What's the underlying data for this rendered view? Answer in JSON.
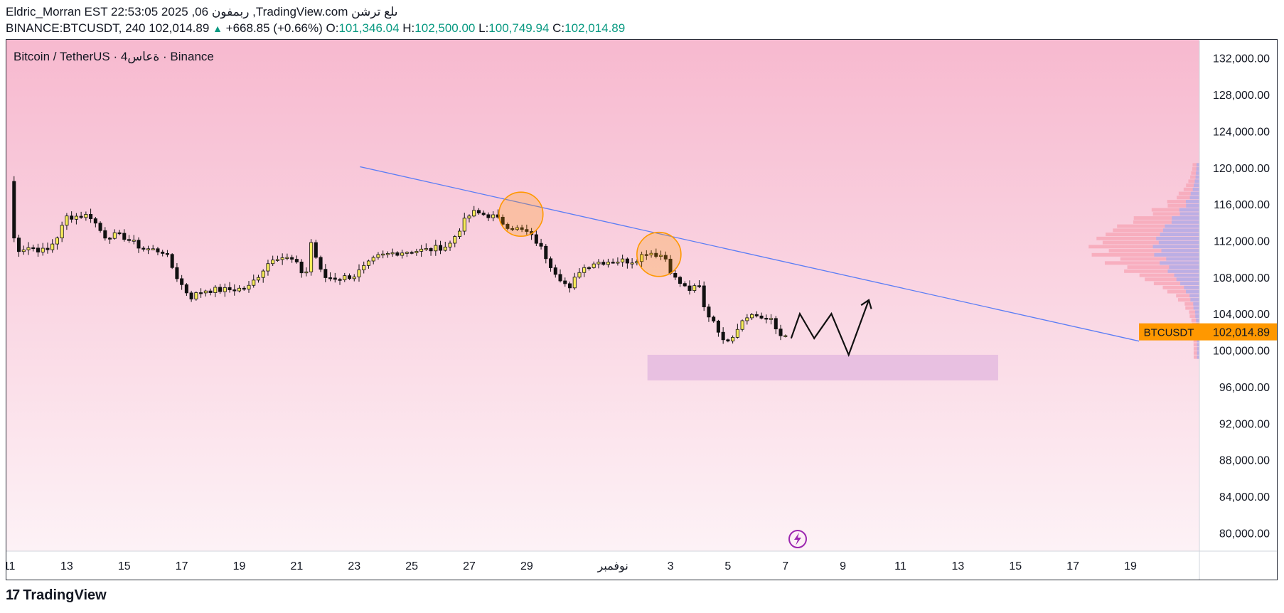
{
  "header": {
    "line1": "Eldric_Morran EST 22:53:05 2025 ,06 ربمفون ,TradingView.com ىلع ترشن",
    "symbol": "BINANCE:BTCUSDT, 240",
    "last": "102,014.89",
    "change": "+668.85 (+0.66%)",
    "o_label": "O:",
    "o": "101,346.04",
    "h_label": "H:",
    "h": "102,500.00",
    "l_label": "L:",
    "l": "100,749.94",
    "c_label": "C:",
    "c": "102,014.89"
  },
  "chart_title": "Bitcoin / TetherUS · 4ةعاس · Binance",
  "price_tag": {
    "symbol": "BTCUSDT",
    "value": "102,014.89"
  },
  "footer": {
    "brand": "TradingView"
  },
  "colors": {
    "bg_top": "#f7b9cf",
    "bg_bottom": "#fdf2f6",
    "bull": "#f7eb5a",
    "bear": "#111111",
    "trend": "#5b7df5",
    "circle": "#ff9800",
    "zone": "#e6bde0",
    "vp_pink": "#f7a8b8",
    "vp_blue": "#b5aee8",
    "tag": "#ff9800"
  },
  "chart_data": {
    "type": "candlestick",
    "title": "Bitcoin / TetherUS · 4h · Binance",
    "symbol": "BINANCE:BTCUSDT",
    "timeframe": "240",
    "ylim": [
      78000,
      134000
    ],
    "y_ticks": [
      "132,000.00",
      "128,000.00",
      "124,000.00",
      "120,000.00",
      "116,000.00",
      "112,000.00",
      "108,000.00",
      "104,000.00",
      "100,000.00",
      "96,000.00",
      "92,000.00",
      "88,000.00",
      "84,000.00",
      "80,000.00"
    ],
    "y_tick_values": [
      132000,
      128000,
      124000,
      120000,
      116000,
      112000,
      108000,
      104000,
      100000,
      96000,
      92000,
      88000,
      84000,
      80000
    ],
    "x_ticks": [
      {
        "label": "11",
        "day": 11
      },
      {
        "label": "13",
        "day": 13
      },
      {
        "label": "15",
        "day": 15
      },
      {
        "label": "17",
        "day": 17
      },
      {
        "label": "19",
        "day": 19
      },
      {
        "label": "21",
        "day": 21
      },
      {
        "label": "23",
        "day": 23
      },
      {
        "label": "25",
        "day": 25
      },
      {
        "label": "27",
        "day": 27
      },
      {
        "label": "29",
        "day": 29
      },
      {
        "label": "نوفمبر",
        "day": 32
      },
      {
        "label": "3",
        "day": 34
      },
      {
        "label": "5",
        "day": 36
      },
      {
        "label": "7",
        "day": 38
      },
      {
        "label": "9",
        "day": 40
      },
      {
        "label": "11",
        "day": 42
      },
      {
        "label": "13",
        "day": 44
      },
      {
        "label": "15",
        "day": 46
      },
      {
        "label": "17",
        "day": 48
      },
      {
        "label": "19",
        "day": 50
      }
    ],
    "x_range_days": [
      10.9,
      52.4
    ],
    "candle_waypoints": [
      [
        11.0,
        118500
      ],
      [
        11.2,
        111000
      ],
      [
        11.7,
        111300
      ],
      [
        12.3,
        110800
      ],
      [
        12.7,
        112600
      ],
      [
        13.0,
        114600
      ],
      [
        13.8,
        114800
      ],
      [
        14.3,
        112500
      ],
      [
        14.6,
        112600
      ],
      [
        15.0,
        112400
      ],
      [
        15.6,
        111200
      ],
      [
        16.4,
        110800
      ],
      [
        16.9,
        107600
      ],
      [
        17.3,
        105800
      ],
      [
        17.8,
        106600
      ],
      [
        18.5,
        106600
      ],
      [
        19.3,
        106800
      ],
      [
        20.2,
        110300
      ],
      [
        20.5,
        110200
      ],
      [
        20.9,
        109800
      ],
      [
        21.3,
        108000
      ],
      [
        21.5,
        111800
      ],
      [
        21.9,
        108000
      ],
      [
        22.5,
        107900
      ],
      [
        23.0,
        108200
      ],
      [
        23.8,
        110200
      ],
      [
        24.4,
        110700
      ],
      [
        25.1,
        110900
      ],
      [
        25.6,
        111000
      ],
      [
        26.3,
        111500
      ],
      [
        26.8,
        114000
      ],
      [
        27.1,
        115100
      ],
      [
        27.8,
        114700
      ],
      [
        28.3,
        113700
      ],
      [
        29.0,
        112900
      ],
      [
        29.4,
        111700
      ],
      [
        29.9,
        109000
      ],
      [
        30.5,
        106600
      ],
      [
        30.8,
        108700
      ],
      [
        31.3,
        109600
      ],
      [
        32.0,
        109800
      ],
      [
        32.7,
        109800
      ],
      [
        33.2,
        110800
      ],
      [
        33.8,
        110300
      ],
      [
        34.1,
        108000
      ],
      [
        34.6,
        106600
      ],
      [
        35.0,
        106900
      ],
      [
        35.2,
        104200
      ],
      [
        35.6,
        103000
      ],
      [
        35.8,
        100800
      ],
      [
        36.2,
        101800
      ],
      [
        36.6,
        103900
      ],
      [
        37.0,
        103800
      ],
      [
        37.5,
        103200
      ],
      [
        37.8,
        101600
      ],
      [
        38.1,
        102000
      ]
    ],
    "volume_profile": {
      "price_range": [
        99000,
        120500
      ],
      "levels": 48,
      "poc_price": 111300,
      "note": "horizontal volume-at-price histogram on right edge of plot"
    },
    "drawings": {
      "trendline": {
        "start": {
          "day": 23.2,
          "price": 120100
        },
        "end": {
          "day": 50.3,
          "price": 101000
        }
      },
      "circles": [
        {
          "day": 28.8,
          "price": 114900
        },
        {
          "day": 33.6,
          "price": 110500
        }
      ],
      "zone": {
        "day_start": 33.2,
        "day_end": 45.4,
        "price_high": 99500,
        "price_low": 96700
      },
      "projection_path": [
        {
          "day": 38.2,
          "price": 101300
        },
        {
          "day": 38.5,
          "price": 104000
        },
        {
          "day": 39.0,
          "price": 101300
        },
        {
          "day": 39.6,
          "price": 104000
        },
        {
          "day": 40.2,
          "price": 99500
        },
        {
          "day": 40.9,
          "price": 105500
        }
      ]
    }
  }
}
